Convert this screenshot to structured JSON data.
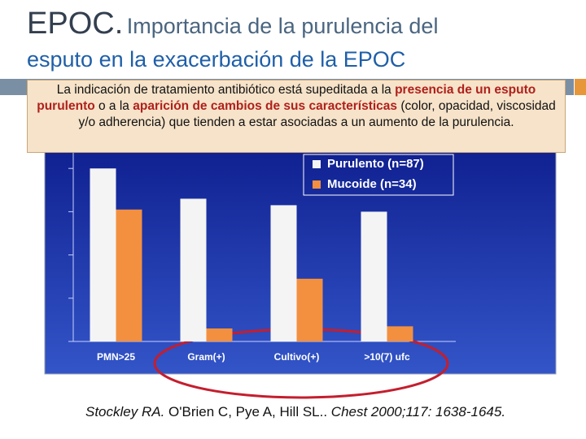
{
  "title": {
    "main": "EPOC.",
    "rest": "Importancia de la purulencia del",
    "line2": "esputo en la exacerbación de la EPOC"
  },
  "callout": [
    "La indicación de tratamiento antibiótico está supeditada a la ",
    "presencia de un esputo purulento",
    " o a la ",
    "aparición de cambios de sus características",
    " (color, opacidad, viscosidad y/o adherencia) que tienden a estar asociadas a un aumento de la purulencia."
  ],
  "citation": [
    "Stockley RA.",
    " O'Brien C, Pye A, Hill SL.. ",
    "Chest 2000;117: 1638-1645."
  ],
  "chart_data": {
    "type": "bar",
    "categories": [
      "PMN>25",
      "Gram(+)",
      "Cultivo(+)",
      ">10(7) ufc"
    ],
    "series": [
      {
        "name": "Purulento (n=87)",
        "color": "#f4f4f4",
        "values": [
          80,
          66,
          63,
          60
        ]
      },
      {
        "name": "Mucoide (n=34)",
        "color": "#f39040",
        "values": [
          61,
          6,
          29,
          7
        ]
      }
    ],
    "ylim": [
      0,
      100
    ],
    "yticks": [
      0,
      20,
      40,
      60,
      80,
      100
    ]
  }
}
